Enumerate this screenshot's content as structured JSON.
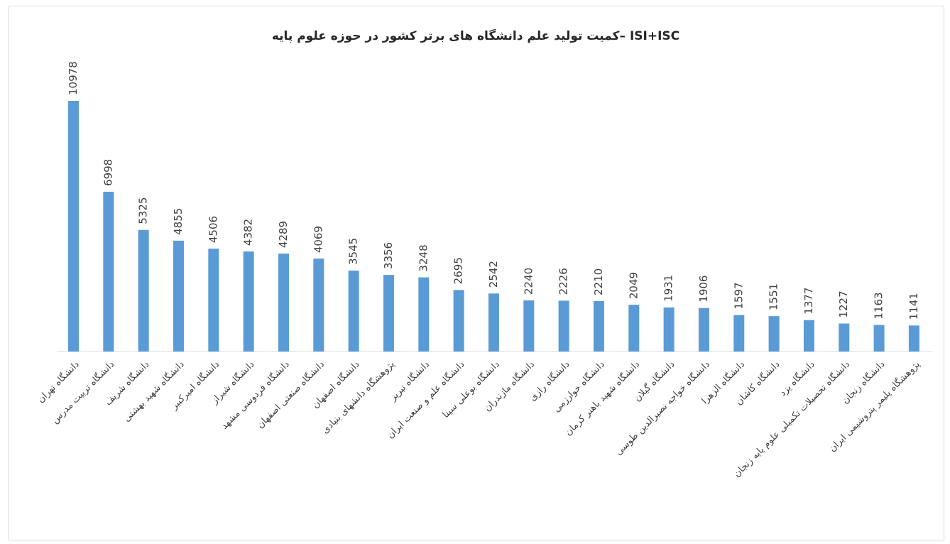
{
  "chart_data": {
    "type": "bar",
    "title": "کمیت تولید علم دانشگاه های برتر کشور در حوزه علوم پایه– ISI+ISC",
    "categories": [
      "دانشگاه تهران",
      "دانشگاه تربیت مدرس",
      "دانشگاه شریف",
      "دانشگاه شهید بهشتی",
      "دانشگاه امیرکبیر",
      "دانشگاه شیراز",
      "دانشگاه فردوسی مشهد",
      "دانشگاه صنعتی اصفهان",
      "دانشگاه اصفهان",
      "پژوهشگاه دانشهای بنیادی",
      "دانشگاه تبریز",
      "دانشگاه علم و صنعت ایران",
      "دانشگاه بوعلی سینا",
      "دانشگاه مازندران",
      "دانشگاه رازی",
      "دانشگاه خوارزمی",
      "دانشگاه شهید باهنر کرمان",
      "دانشگاه گیلان",
      "دانشگاه خواجه نصیرالدین طوسی",
      "دانشگاه الزهرا",
      "دانشگاه کاشان",
      "دانشگاه یزد",
      "دانشگاه تحصیلات تکمیلی علوم پایه زنجان",
      "دانشگاه زنجان",
      "پژوهشگاه پلیمر پتروشیمی ایران"
    ],
    "values": [
      10978,
      6998,
      5325,
      4855,
      4506,
      4382,
      4289,
      4069,
      3545,
      3356,
      3248,
      2695,
      2542,
      2240,
      2226,
      2210,
      2049,
      1931,
      1906,
      1597,
      1551,
      1377,
      1227,
      1163,
      1141
    ],
    "color": "#5b9bd5"
  }
}
